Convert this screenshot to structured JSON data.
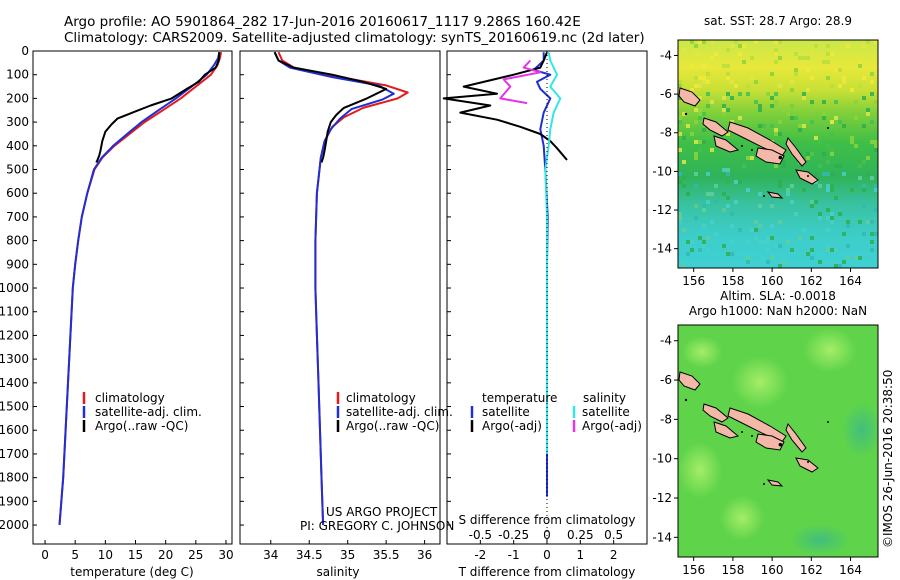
{
  "header": {
    "title_line1": "Argo profile: AO 5901864_282 17-Jun-2016 20160617_1117 9.286S 160.42E",
    "title_line2": "Climatology: CARS2009. Satellite-adjusted climatology: synTS_20160619.nc (2d later)"
  },
  "credit": {
    "line1": "US ARGO PROJECT",
    "line2": "PI: GREGORY C. JOHNSON"
  },
  "watermark": "©IMOS 26-Jun-2016 20:38:50",
  "colors": {
    "climatology": "#e41a1c",
    "satellite": "#1f2fd6",
    "argo": "#000000",
    "salinity_satellite": "#33e6e6",
    "salinity_argo": "#e633e6",
    "land": "#f4b8a8"
  },
  "legend": {
    "climatology": "climatology",
    "satellite_adj": "satellite-adj. clim.",
    "argo_raw": "Argo(..raw -QC)",
    "col_temperature": "temperature",
    "col_salinity": "salinity",
    "satellite": "satellite",
    "argo_adj": "Argo(-adj)"
  },
  "chart_data": [
    {
      "type": "line",
      "name": "temperature-profile",
      "xlabel": "temperature (deg C)",
      "ylabel": "",
      "xlim": [
        -2,
        31
      ],
      "ylim": [
        2080,
        0
      ],
      "xticks": [
        "0",
        "5",
        "10",
        "15",
        "20",
        "25",
        "30"
      ],
      "yticks": [
        "0",
        "100",
        "200",
        "300",
        "400",
        "500",
        "600",
        "700",
        "800",
        "900",
        "1000",
        "1100",
        "1200",
        "1300",
        "1400",
        "1500",
        "1600",
        "1700",
        "1800",
        "1900",
        "2000"
      ],
      "series": [
        {
          "name": "climatology",
          "color": "#e41a1c",
          "points": [
            [
              29.2,
              5
            ],
            [
              29.0,
              30
            ],
            [
              28.6,
              60
            ],
            [
              27.5,
              100
            ],
            [
              25.0,
              150
            ],
            [
              22.5,
              200
            ],
            [
              19.5,
              250
            ],
            [
              16.5,
              300
            ],
            [
              14.0,
              350
            ],
            [
              11.5,
              400
            ],
            [
              9.5,
              450
            ],
            [
              8.2,
              500
            ],
            [
              7.0,
              600
            ],
            [
              6.1,
              700
            ],
            [
              5.5,
              800
            ],
            [
              5.0,
              900
            ],
            [
              4.6,
              1000
            ],
            [
              4.2,
              1200
            ],
            [
              3.8,
              1400
            ],
            [
              3.4,
              1600
            ],
            [
              3.0,
              1800
            ],
            [
              2.4,
              2000
            ]
          ]
        },
        {
          "name": "satellite-adj. clim.",
          "color": "#1f2fd6",
          "points": [
            [
              28.9,
              5
            ],
            [
              28.7,
              30
            ],
            [
              28.0,
              60
            ],
            [
              26.8,
              100
            ],
            [
              24.3,
              150
            ],
            [
              21.7,
              200
            ],
            [
              18.8,
              250
            ],
            [
              16.0,
              300
            ],
            [
              13.6,
              350
            ],
            [
              11.3,
              400
            ],
            [
              9.4,
              450
            ],
            [
              8.1,
              500
            ],
            [
              7.0,
              600
            ],
            [
              6.1,
              700
            ],
            [
              5.5,
              800
            ],
            [
              5.0,
              900
            ],
            [
              4.6,
              1000
            ],
            [
              4.2,
              1200
            ],
            [
              3.8,
              1400
            ],
            [
              3.4,
              1600
            ],
            [
              3.0,
              1800
            ],
            [
              2.4,
              2000
            ]
          ]
        },
        {
          "name": "Argo(..raw -QC)",
          "color": "#000000",
          "points": [
            [
              28.9,
              5
            ],
            [
              28.8,
              40
            ],
            [
              28.3,
              70
            ],
            [
              26.5,
              100
            ],
            [
              25.5,
              130
            ],
            [
              23.5,
              160
            ],
            [
              21.0,
              200
            ],
            [
              17.5,
              230
            ],
            [
              14.5,
              260
            ],
            [
              12.0,
              285
            ],
            [
              11.0,
              310
            ],
            [
              10.0,
              340
            ],
            [
              9.5,
              380
            ],
            [
              9.2,
              420
            ],
            [
              9.0,
              440
            ],
            [
              8.7,
              460
            ],
            [
              8.5,
              470
            ]
          ]
        }
      ]
    },
    {
      "type": "line",
      "name": "salinity-profile",
      "xlabel": "salinity",
      "ylabel": "",
      "xlim": [
        33.6,
        36.2
      ],
      "ylim": [
        2080,
        0
      ],
      "xticks": [
        "34",
        "34.5",
        "35",
        "35.5",
        "36"
      ],
      "series": [
        {
          "name": "climatology",
          "color": "#e41a1c",
          "points": [
            [
              34.1,
              5
            ],
            [
              34.15,
              40
            ],
            [
              34.3,
              70
            ],
            [
              34.9,
              110
            ],
            [
              35.5,
              145
            ],
            [
              35.78,
              175
            ],
            [
              35.65,
              200
            ],
            [
              35.2,
              240
            ],
            [
              34.95,
              280
            ],
            [
              34.8,
              320
            ],
            [
              34.7,
              380
            ],
            [
              34.65,
              450
            ],
            [
              34.6,
              600
            ],
            [
              34.58,
              800
            ],
            [
              34.58,
              1000
            ],
            [
              34.6,
              1200
            ],
            [
              34.62,
              1400
            ],
            [
              34.64,
              1600
            ],
            [
              34.66,
              1800
            ],
            [
              34.68,
              2000
            ]
          ]
        },
        {
          "name": "satellite-adj. clim.",
          "color": "#1f2fd6",
          "points": [
            [
              34.05,
              5
            ],
            [
              34.1,
              40
            ],
            [
              34.25,
              70
            ],
            [
              34.8,
              110
            ],
            [
              35.4,
              145
            ],
            [
              35.6,
              180
            ],
            [
              35.45,
              205
            ],
            [
              35.05,
              245
            ],
            [
              34.9,
              285
            ],
            [
              34.78,
              330
            ],
            [
              34.7,
              380
            ],
            [
              34.65,
              450
            ],
            [
              34.6,
              600
            ],
            [
              34.58,
              800
            ],
            [
              34.58,
              1000
            ],
            [
              34.6,
              1200
            ],
            [
              34.62,
              1400
            ],
            [
              34.64,
              1600
            ],
            [
              34.66,
              1800
            ],
            [
              34.68,
              2000
            ]
          ]
        },
        {
          "name": "Argo(..raw -QC)",
          "color": "#000000",
          "points": [
            [
              34.05,
              5
            ],
            [
              34.1,
              40
            ],
            [
              34.3,
              70
            ],
            [
              34.8,
              100
            ],
            [
              35.2,
              130
            ],
            [
              35.5,
              160
            ],
            [
              35.25,
              200
            ],
            [
              34.95,
              240
            ],
            [
              34.85,
              270
            ],
            [
              34.78,
              300
            ],
            [
              34.74,
              340
            ],
            [
              34.72,
              380
            ],
            [
              34.7,
              420
            ],
            [
              34.68,
              450
            ],
            [
              34.66,
              470
            ]
          ]
        }
      ]
    },
    {
      "type": "line",
      "name": "difference-from-climatology",
      "xlabel": "T difference from climatology",
      "xlabel_top": "S difference from climatology",
      "xlim": [
        -3,
        3
      ],
      "ylim": [
        2080,
        0
      ],
      "xticks": [
        "-2",
        "-1",
        "0",
        "1",
        "2"
      ],
      "xticks_salinity": [
        "-0.5",
        "-0.25",
        "0",
        "0.25",
        "0.5"
      ],
      "series": [
        {
          "name": "temperature satellite",
          "color": "#1f2fd6",
          "points": [
            [
              -0.1,
              5
            ],
            [
              -0.1,
              40
            ],
            [
              -0.4,
              80
            ],
            [
              0.1,
              100
            ],
            [
              -0.3,
              130
            ],
            [
              -0.2,
              160
            ],
            [
              0.1,
              200
            ],
            [
              -0.1,
              260
            ],
            [
              -0.2,
              330
            ],
            [
              -0.1,
              400
            ],
            [
              -0.05,
              500
            ],
            [
              0.02,
              700
            ],
            [
              0.0,
              900
            ],
            [
              0.0,
              1200
            ],
            [
              0.0,
              1500
            ],
            [
              0.0,
              1800
            ],
            [
              0.0,
              1880
            ]
          ]
        },
        {
          "name": "temperature Argo(-adj)",
          "color": "#000000",
          "points": [
            [
              0.0,
              5
            ],
            [
              -0.1,
              40
            ],
            [
              -0.2,
              70
            ],
            [
              -1.0,
              100
            ],
            [
              -2.5,
              150
            ],
            [
              -1.5,
              180
            ],
            [
              -3.1,
              200
            ],
            [
              -1.7,
              230
            ],
            [
              -2.6,
              260
            ],
            [
              -1.5,
              290
            ],
            [
              -0.8,
              320
            ],
            [
              -0.2,
              350
            ],
            [
              0.1,
              380
            ],
            [
              0.3,
              410
            ],
            [
              0.6,
              460
            ]
          ]
        },
        {
          "name": "salinity satellite",
          "color": "#33e6e6",
          "points": [
            [
              0.05,
              5
            ],
            [
              0.1,
              40
            ],
            [
              0.3,
              100
            ],
            [
              0.1,
              150
            ],
            [
              0.4,
              200
            ],
            [
              0.2,
              260
            ],
            [
              0.1,
              330
            ],
            [
              0.05,
              400
            ],
            [
              -0.05,
              500
            ],
            [
              0.0,
              700
            ],
            [
              0.0,
              900
            ],
            [
              0.0,
              1200
            ],
            [
              0.0,
              1500
            ],
            [
              0.0,
              1700
            ]
          ]
        },
        {
          "name": "salinity Argo(-adj)",
          "color": "#e633e6",
          "points": [
            [
              -0.5,
              40
            ],
            [
              -0.7,
              70
            ],
            [
              -0.2,
              90
            ],
            [
              -1.3,
              120
            ],
            [
              -1.1,
              150
            ],
            [
              -1.4,
              200
            ],
            [
              -0.6,
              220
            ]
          ]
        }
      ]
    },
    {
      "type": "heatmap",
      "name": "satellite-sst-map",
      "title": "sat. SST: 28.7 Argo: 28.9",
      "xlim": [
        155.2,
        165.4
      ],
      "ylim": [
        -15,
        -3.2
      ],
      "xticks": [
        "156",
        "158",
        "160",
        "162",
        "164"
      ],
      "yticks": [
        "-4",
        "-6",
        "-8",
        "-10",
        "-12",
        "-14"
      ],
      "argo_position": [
        160.42,
        -9.286
      ]
    },
    {
      "type": "heatmap",
      "name": "altimetry-sla-map",
      "title_line1": "Altim. SLA: -0.0018",
      "title_line2": "Argo h1000: NaN h2000: NaN",
      "xlim": [
        155.2,
        165.4
      ],
      "ylim": [
        -15,
        -3.2
      ],
      "xticks": [
        "156",
        "158",
        "160",
        "162",
        "164"
      ],
      "yticks": [
        "-4",
        "-6",
        "-8",
        "-10",
        "-12",
        "-14"
      ],
      "argo_position": [
        160.42,
        -9.286
      ]
    }
  ]
}
